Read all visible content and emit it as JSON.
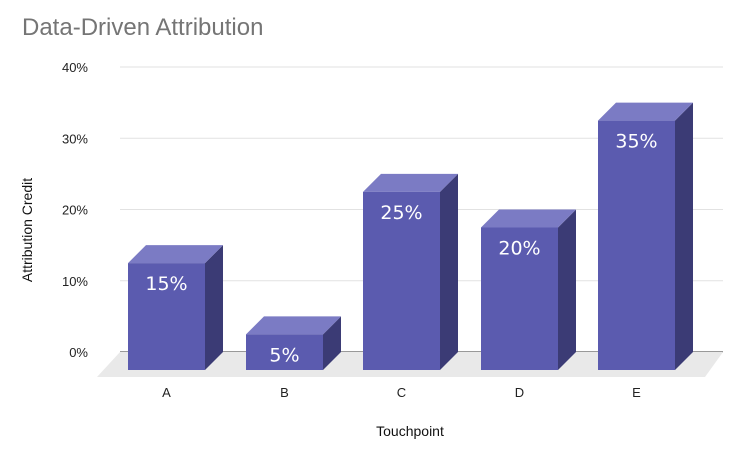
{
  "chart_data": {
    "type": "bar",
    "title": "Data-Driven Attribution",
    "xlabel": "Touchpoint",
    "ylabel": "Attribution Credit",
    "categories": [
      "A",
      "B",
      "C",
      "D",
      "E"
    ],
    "values": [
      15,
      5,
      25,
      20,
      35
    ],
    "data_labels": [
      "15%",
      "5%",
      "25%",
      "20%",
      "35%"
    ],
    "yticks": [
      "0%",
      "10%",
      "20%",
      "30%",
      "40%"
    ],
    "ylim": [
      0,
      40
    ],
    "grid": true,
    "legend": "none",
    "style": "3d",
    "colors": {
      "front": "#5b5baf",
      "top": "#7b7bc4",
      "side": "#3b3b75",
      "floor": "#e9e9e9",
      "grid": "#e2e2e2"
    }
  }
}
